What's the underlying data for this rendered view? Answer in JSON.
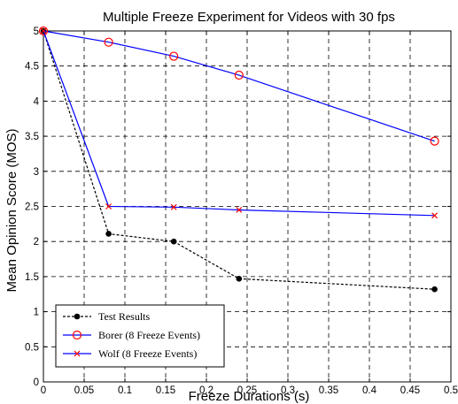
{
  "chart_data": {
    "type": "line",
    "title": "Multiple Freeze Experiment for Videos with 30 fps",
    "xlabel": "Freeze Durations (s)",
    "ylabel": "Mean Opinion Score (MOS)",
    "xlim": [
      0,
      0.5
    ],
    "ylim": [
      0,
      5
    ],
    "xticks": [
      0,
      0.05,
      0.1,
      0.15,
      0.2,
      0.25,
      0.3,
      0.35,
      0.4,
      0.45,
      0.5
    ],
    "xtick_labels": [
      "0",
      "0.05",
      "0.1",
      "0.15",
      "0.2",
      "0.25",
      "0.3",
      "0.35",
      "0.4",
      "0.45",
      "0.5"
    ],
    "yticks": [
      0,
      0.5,
      1,
      1.5,
      2,
      2.5,
      3,
      3.5,
      4,
      4.5,
      5
    ],
    "ytick_labels": [
      "0",
      "0.5",
      "1",
      "1.5",
      "2",
      "2.5",
      "3",
      "3.5",
      "4",
      "4.5",
      "5"
    ],
    "grid": true,
    "legend_position": "bottom-left",
    "series": [
      {
        "name": "Test Results",
        "color": "#000000",
        "line_style": "dashed",
        "marker": "dot",
        "x": [
          0,
          0.08,
          0.16,
          0.24,
          0.48
        ],
        "y": [
          5.0,
          2.11,
          2.0,
          1.47,
          1.32
        ]
      },
      {
        "name": "Borer (8 Freeze Events)",
        "color": "#0000ff",
        "marker_color": "#ff0000",
        "line_style": "solid",
        "marker": "circle",
        "x": [
          0,
          0.08,
          0.16,
          0.24,
          0.48
        ],
        "y": [
          5.0,
          4.84,
          4.64,
          4.37,
          3.43
        ]
      },
      {
        "name": "Wolf (8 Freeze Events)",
        "color": "#0000ff",
        "marker_color": "#ff0000",
        "line_style": "solid",
        "marker": "x",
        "x": [
          0,
          0.08,
          0.16,
          0.24,
          0.48
        ],
        "y": [
          5.0,
          2.5,
          2.49,
          2.45,
          2.37
        ]
      }
    ]
  }
}
